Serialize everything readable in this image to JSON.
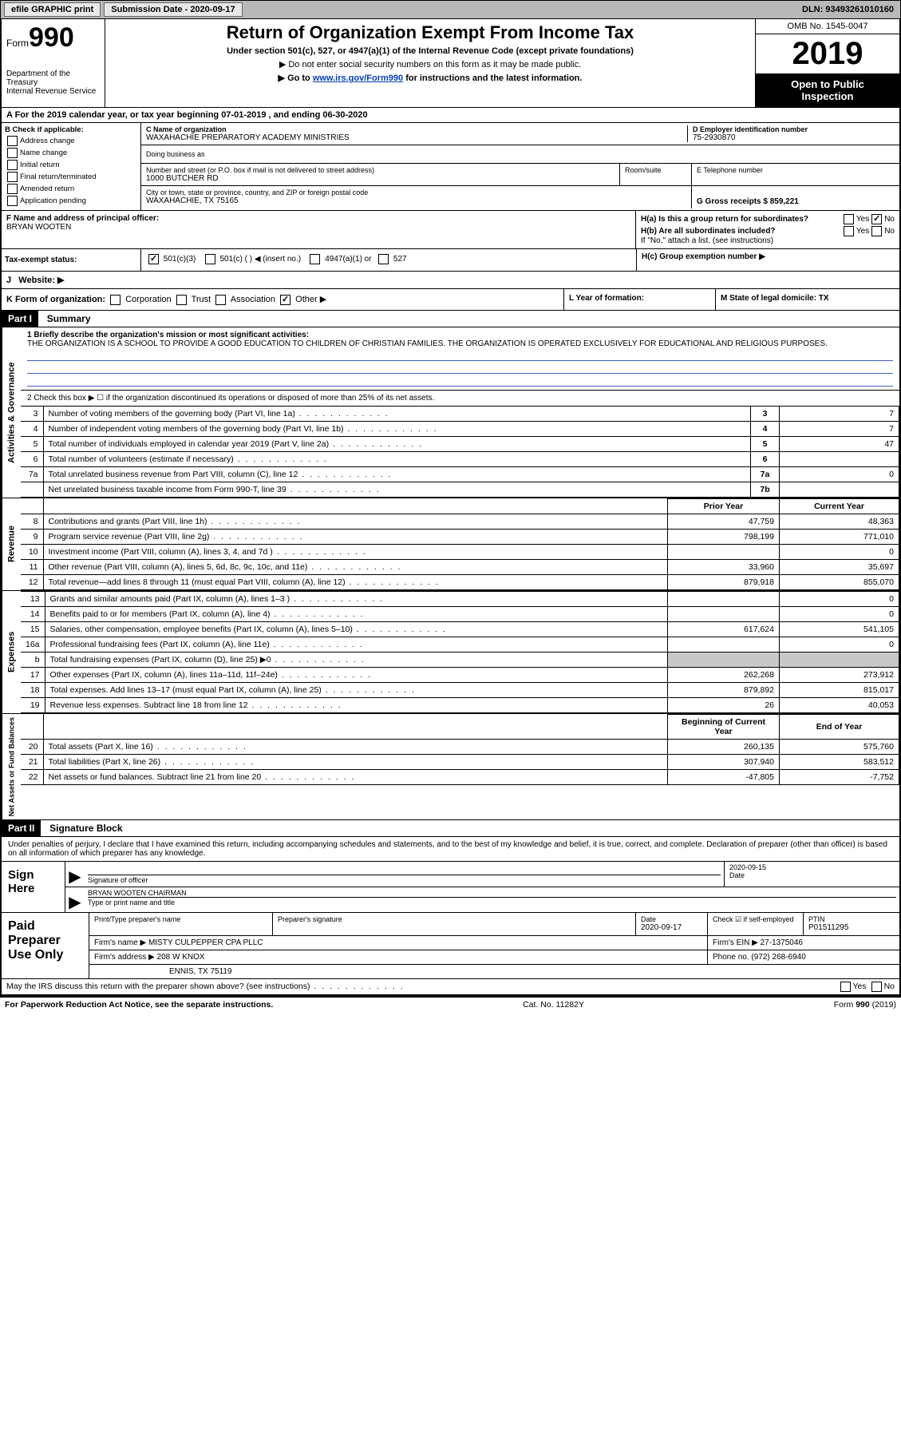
{
  "topbar": {
    "efile_label": "efile GRAPHIC print",
    "submission_label": "Submission Date - 2020-09-17",
    "dln_label": "DLN: 93493261010160"
  },
  "header": {
    "form_label": "Form",
    "form_number": "990",
    "dept1": "Department of the Treasury",
    "dept2": "Internal Revenue Service",
    "title": "Return of Organization Exempt From Income Tax",
    "subtitle": "Under section 501(c), 527, or 4947(a)(1) of the Internal Revenue Code (except private foundations)",
    "arrow1": "Do not enter social security numbers on this form as it may be made public.",
    "arrow2_pre": "Go to ",
    "arrow2_link": "www.irs.gov/Form990",
    "arrow2_post": " for instructions and the latest information.",
    "omb": "OMB No. 1545-0047",
    "year": "2019",
    "inspect1": "Open to Public",
    "inspect2": "Inspection"
  },
  "row_a": "A For the 2019 calendar year, or tax year beginning 07-01-2019   , and ending 06-30-2020",
  "box_b": {
    "title": "B Check if applicable:",
    "items": [
      "Address change",
      "Name change",
      "Initial return",
      "Final return/terminated",
      "Amended return",
      "Application pending"
    ]
  },
  "box_c": {
    "label": "C Name of organization",
    "name": "WAXAHACHIE PREPARATORY ACADEMY MINISTRIES",
    "dba_label": "Doing business as",
    "addr_label": "Number and street (or P.O. box if mail is not delivered to street address)",
    "room_label": "Room/suite",
    "street": "1000 BUTCHER RD",
    "city_label": "City or town, state or province, country, and ZIP or foreign postal code",
    "city": "WAXAHACHIE, TX  75165"
  },
  "box_d": {
    "label": "D Employer identification number",
    "value": "75-2930870"
  },
  "box_e": {
    "label": "E Telephone number"
  },
  "box_g": {
    "label": "G Gross receipts $ 859,221"
  },
  "box_f": {
    "label": "F  Name and address of principal officer:",
    "name": "BRYAN WOOTEN"
  },
  "box_h": {
    "ha": "H(a)  Is this a group return for subordinates?",
    "hb": "H(b)  Are all subordinates included?",
    "hb_note": "If \"No,\" attach a list. (see instructions)",
    "hc": "H(c)  Group exemption number ▶",
    "yes": "Yes",
    "no": "No"
  },
  "tax_status": {
    "label": "Tax-exempt status:",
    "opt1": "501(c)(3)",
    "opt2": "501(c) (  ) ◀ (insert no.)",
    "opt3": "4947(a)(1) or",
    "opt4": "527"
  },
  "website_label": "J   Website: ▶",
  "row_k": {
    "label": "K Form of organization:",
    "opts": [
      "Corporation",
      "Trust",
      "Association",
      "Other ▶"
    ],
    "l_label": "L Year of formation:",
    "m_label": "M State of legal domicile: TX"
  },
  "part1": {
    "header": "Part I",
    "title": "Summary",
    "side_gov": "Activities & Governance",
    "side_rev": "Revenue",
    "side_exp": "Expenses",
    "side_net": "Net Assets or Fund Balances",
    "line1_label": "1  Briefly describe the organization's mission or most significant activities:",
    "line1_text": "THE ORGANIZATION IS A SCHOOL TO PROVIDE A GOOD EDUCATION TO CHILDREN OF CHRISTIAN FAMILIES. THE ORGANIZATION IS OPERATED EXCLUSIVELY FOR EDUCATIONAL AND RELIGIOUS PURPOSES.",
    "line2": "2   Check this box ▶ ☐  if the organization discontinued its operations or disposed of more than 25% of its net assets.",
    "gov_rows": [
      {
        "n": "3",
        "d": "Number of voting members of the governing body (Part VI, line 1a)",
        "b": "3",
        "v": "7"
      },
      {
        "n": "4",
        "d": "Number of independent voting members of the governing body (Part VI, line 1b)",
        "b": "4",
        "v": "7"
      },
      {
        "n": "5",
        "d": "Total number of individuals employed in calendar year 2019 (Part V, line 2a)",
        "b": "5",
        "v": "47"
      },
      {
        "n": "6",
        "d": "Total number of volunteers (estimate if necessary)",
        "b": "6",
        "v": ""
      },
      {
        "n": "7a",
        "d": "Total unrelated business revenue from Part VIII, column (C), line 12",
        "b": "7a",
        "v": "0"
      },
      {
        "n": "",
        "d": "Net unrelated business taxable income from Form 990-T, line 39",
        "b": "7b",
        "v": ""
      }
    ],
    "hdr_prior": "Prior Year",
    "hdr_current": "Current Year",
    "rev_rows": [
      {
        "n": "8",
        "d": "Contributions and grants (Part VIII, line 1h)",
        "p": "47,759",
        "c": "48,363"
      },
      {
        "n": "9",
        "d": "Program service revenue (Part VIII, line 2g)",
        "p": "798,199",
        "c": "771,010"
      },
      {
        "n": "10",
        "d": "Investment income (Part VIII, column (A), lines 3, 4, and 7d )",
        "p": "",
        "c": "0"
      },
      {
        "n": "11",
        "d": "Other revenue (Part VIII, column (A), lines 5, 6d, 8c, 9c, 10c, and 11e)",
        "p": "33,960",
        "c": "35,697"
      },
      {
        "n": "12",
        "d": "Total revenue—add lines 8 through 11 (must equal Part VIII, column (A), line 12)",
        "p": "879,918",
        "c": "855,070"
      }
    ],
    "exp_rows": [
      {
        "n": "13",
        "d": "Grants and similar amounts paid (Part IX, column (A), lines 1–3 )",
        "p": "",
        "c": "0"
      },
      {
        "n": "14",
        "d": "Benefits paid to or for members (Part IX, column (A), line 4)",
        "p": "",
        "c": "0"
      },
      {
        "n": "15",
        "d": "Salaries, other compensation, employee benefits (Part IX, column (A), lines 5–10)",
        "p": "617,624",
        "c": "541,105"
      },
      {
        "n": "16a",
        "d": "Professional fundraising fees (Part IX, column (A), line 11e)",
        "p": "",
        "c": "0"
      },
      {
        "n": "b",
        "d": "Total fundraising expenses (Part IX, column (D), line 25) ▶0",
        "p": "GREY",
        "c": "GREY"
      },
      {
        "n": "17",
        "d": "Other expenses (Part IX, column (A), lines 11a–11d, 11f–24e)",
        "p": "262,268",
        "c": "273,912"
      },
      {
        "n": "18",
        "d": "Total expenses. Add lines 13–17 (must equal Part IX, column (A), line 25)",
        "p": "879,892",
        "c": "815,017"
      },
      {
        "n": "19",
        "d": "Revenue less expenses. Subtract line 18 from line 12",
        "p": "26",
        "c": "40,053"
      }
    ],
    "hdr_begin": "Beginning of Current Year",
    "hdr_end": "End of Year",
    "net_rows": [
      {
        "n": "20",
        "d": "Total assets (Part X, line 16)",
        "p": "260,135",
        "c": "575,760"
      },
      {
        "n": "21",
        "d": "Total liabilities (Part X, line 26)",
        "p": "307,940",
        "c": "583,512"
      },
      {
        "n": "22",
        "d": "Net assets or fund balances. Subtract line 21 from line 20",
        "p": "-47,805",
        "c": "-7,752"
      }
    ]
  },
  "part2": {
    "header": "Part II",
    "title": "Signature Block",
    "intro": "Under penalties of perjury, I declare that I have examined this return, including accompanying schedules and statements, and to the best of my knowledge and belief, it is true, correct, and complete. Declaration of preparer (other than officer) is based on all information of which preparer has any knowledge.",
    "sign_here": "Sign Here",
    "sig_officer": "Signature of officer",
    "date_label": "Date",
    "date_val": "2020-09-15",
    "name_title": "BRYAN WOOTEN  CHAIRMAN",
    "name_label": "Type or print name and title",
    "paid_label": "Paid Preparer Use Only",
    "prep_name_label": "Print/Type preparer's name",
    "prep_sig_label": "Preparer's signature",
    "prep_date_label": "Date",
    "prep_date": "2020-09-17",
    "check_label": "Check ☑ if self-employed",
    "ptin_label": "PTIN",
    "ptin": "P01511295",
    "firm_name_label": "Firm's name    ▶",
    "firm_name": "MISTY CULPEPPER CPA PLLC",
    "firm_ein_label": "Firm's EIN ▶",
    "firm_ein": "27-1375046",
    "firm_addr_label": "Firm's address ▶",
    "firm_addr1": "208 W KNOX",
    "firm_addr2": "ENNIS, TX  75119",
    "phone_label": "Phone no.",
    "phone": "(972) 268-6940",
    "discuss": "May the IRS discuss this return with the preparer shown above? (see instructions)"
  },
  "footer": {
    "left": "For Paperwork Reduction Act Notice, see the separate instructions.",
    "mid": "Cat. No. 11282Y",
    "right": "Form 990 (2019)"
  }
}
